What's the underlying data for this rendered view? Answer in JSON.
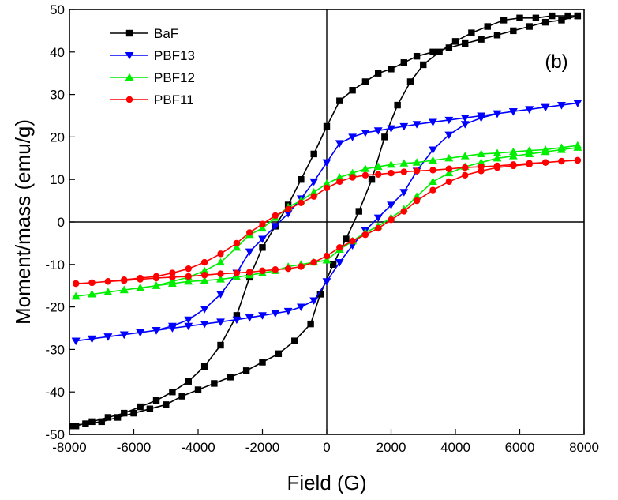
{
  "chart_data": {
    "type": "scatter",
    "title": "",
    "annotation": "(b)",
    "xlabel": "Field (G)",
    "ylabel": "Moment/mass (emu/g)",
    "xlim": [
      -8000,
      8000
    ],
    "ylim": [
      -50,
      50
    ],
    "xticks": [
      -8000,
      -6000,
      -4000,
      -2000,
      0,
      2000,
      4000,
      6000,
      8000
    ],
    "yticks": [
      -50,
      -40,
      -30,
      -20,
      -10,
      0,
      10,
      20,
      30,
      40,
      50
    ],
    "legend_position": "top-left",
    "zero_lines": true,
    "series": [
      {
        "name": "BaF",
        "color": "#000000",
        "marker": "square",
        "x": [
          7800,
          7300,
          6800,
          6300,
          5800,
          5300,
          4800,
          4300,
          3800,
          3300,
          2800,
          2400,
          2000,
          1600,
          1200,
          800,
          400,
          0,
          -400,
          -800,
          -1200,
          -1600,
          -2000,
          -2400,
          -2800,
          -3300,
          -3800,
          -4300,
          -4800,
          -5300,
          -5800,
          -6300,
          -6800,
          -7300,
          -7800,
          -8000,
          -7500,
          -7000,
          -6500,
          -6000,
          -5500,
          -5000,
          -4500,
          -4000,
          -3500,
          -3000,
          -2500,
          -2000,
          -1500,
          -1000,
          -500,
          -200,
          200,
          600,
          1000,
          1400,
          1800,
          2200,
          2600,
          3000,
          3500,
          4000,
          4500,
          5000,
          5500,
          6000,
          6500,
          7000,
          7500,
          7800
        ],
        "y": [
          48.5,
          47.5,
          47,
          46,
          45,
          44,
          43,
          42,
          41,
          40,
          39,
          37.5,
          36,
          35,
          33,
          31,
          28.5,
          22.5,
          16,
          10,
          4,
          -1,
          -6,
          -13,
          -22,
          -29,
          -34,
          -37.5,
          -40,
          -42,
          -43.5,
          -45,
          -46,
          -47,
          -48,
          -48,
          -47.5,
          -47,
          -46,
          -45,
          -44,
          -43,
          -41,
          -39.5,
          -38,
          -36.5,
          -35,
          -33,
          -31,
          -28,
          -24,
          -17,
          -10,
          -4,
          2.5,
          10,
          20,
          27.5,
          33,
          37,
          40,
          42.5,
          44.5,
          46,
          47.5,
          48,
          48,
          48.5,
          48.5,
          48.5
        ]
      },
      {
        "name": "PBF13",
        "color": "#0000ff",
        "marker": "triangle-down",
        "x": [
          7800,
          7300,
          6800,
          6300,
          5800,
          5300,
          4800,
          4300,
          3800,
          3300,
          2800,
          2400,
          2000,
          1600,
          1200,
          800,
          400,
          0,
          -400,
          -800,
          -1200,
          -1600,
          -2000,
          -2400,
          -2800,
          -3300,
          -3800,
          -4300,
          -4800,
          -5300,
          -5800,
          -6300,
          -6800,
          -7300,
          -7800,
          -7800,
          -7300,
          -6800,
          -6300,
          -5800,
          -5300,
          -4800,
          -4300,
          -3800,
          -3300,
          -2800,
          -2400,
          -2000,
          -1600,
          -1200,
          -800,
          -400,
          0,
          400,
          800,
          1200,
          1600,
          2000,
          2400,
          2800,
          3300,
          3800,
          4300,
          4800,
          5300,
          5800,
          6300,
          6800,
          7300,
          7800
        ],
        "y": [
          28,
          27.5,
          27,
          26.5,
          26,
          25.5,
          25,
          24.5,
          24,
          23.5,
          23,
          22.5,
          22,
          21.5,
          21,
          20,
          18.5,
          14,
          9.5,
          5.5,
          2,
          -1,
          -4,
          -7,
          -12,
          -17,
          -20.5,
          -23,
          -24.5,
          -25.5,
          -26,
          -26.5,
          -27,
          -27.5,
          -28,
          -28,
          -27.5,
          -27,
          -26.5,
          -26,
          -25.5,
          -25,
          -24.5,
          -24,
          -23.5,
          -23,
          -22.5,
          -22,
          -21.5,
          -21,
          -20,
          -18.5,
          -14,
          -9.5,
          -5.5,
          -2,
          1,
          4,
          7,
          12,
          17,
          20.5,
          23,
          24.5,
          25.5,
          26,
          26.5,
          27,
          27.5,
          28
        ]
      },
      {
        "name": "PBF12",
        "color": "#00ee00",
        "marker": "triangle-up",
        "x": [
          7800,
          7300,
          6800,
          6300,
          5800,
          5300,
          4800,
          4300,
          3800,
          3300,
          2800,
          2400,
          2000,
          1600,
          1200,
          800,
          400,
          0,
          -400,
          -800,
          -1200,
          -1600,
          -2000,
          -2400,
          -2800,
          -3300,
          -3800,
          -4300,
          -4800,
          -5300,
          -5800,
          -6300,
          -6800,
          -7300,
          -7800,
          -7800,
          -7300,
          -6800,
          -6300,
          -5800,
          -5300,
          -4800,
          -4300,
          -3800,
          -3300,
          -2800,
          -2400,
          -2000,
          -1600,
          -1200,
          -800,
          -400,
          0,
          400,
          800,
          1200,
          1600,
          2000,
          2400,
          2800,
          3300,
          3800,
          4300,
          4800,
          5300,
          5800,
          6300,
          6800,
          7300,
          7800
        ],
        "y": [
          18,
          17.5,
          17,
          16.8,
          16.5,
          16.2,
          16,
          15.5,
          15,
          14.5,
          14,
          13.8,
          13.5,
          13,
          12.5,
          11.5,
          10.5,
          9,
          7,
          5,
          3.5,
          1,
          -1.5,
          -3,
          -6,
          -9.5,
          -11.5,
          -13,
          -14,
          -15,
          -15.5,
          -16,
          -16.5,
          -17,
          -17.5,
          -17.5,
          -17,
          -16.5,
          -16,
          -15.5,
          -15,
          -14.5,
          -14,
          -13.8,
          -13.5,
          -13,
          -12.5,
          -12,
          -11.5,
          -10.5,
          -10,
          -9.5,
          -9,
          -6.5,
          -4.5,
          -2.5,
          -1,
          1,
          3,
          6,
          9.5,
          11.5,
          13,
          14,
          15,
          15.5,
          16,
          16.5,
          17,
          17.5
        ]
      },
      {
        "name": "PBF11",
        "color": "#ff0000",
        "marker": "circle",
        "x": [
          7800,
          7300,
          6800,
          6300,
          5800,
          5300,
          4800,
          4300,
          3800,
          3300,
          2800,
          2400,
          2000,
          1600,
          1200,
          800,
          400,
          0,
          -400,
          -800,
          -1200,
          -1600,
          -2000,
          -2400,
          -2800,
          -3300,
          -3800,
          -4300,
          -4800,
          -5300,
          -5800,
          -6300,
          -6800,
          -7300,
          -7800,
          -7800,
          -7300,
          -6800,
          -6300,
          -5800,
          -5300,
          -4800,
          -4300,
          -3800,
          -3300,
          -2800,
          -2400,
          -2000,
          -1600,
          -1200,
          -800,
          -400,
          0,
          400,
          800,
          1200,
          1600,
          2000,
          2400,
          2800,
          3300,
          3800,
          4300,
          4800,
          5300,
          5800,
          6300,
          6800,
          7300,
          7800
        ],
        "y": [
          14.5,
          14.3,
          14,
          13.8,
          13.5,
          13.2,
          13,
          12.8,
          12.5,
          12.2,
          12,
          11.8,
          11.5,
          11.2,
          11,
          10.5,
          9.5,
          8,
          6,
          4.5,
          3,
          1.5,
          -0.5,
          -2.5,
          -5,
          -7.5,
          -9.5,
          -11,
          -12,
          -12.8,
          -13.2,
          -13.6,
          -14,
          -14.3,
          -14.5,
          -14.5,
          -14.3,
          -14,
          -13.8,
          -13.5,
          -13.2,
          -13,
          -12.8,
          -12.5,
          -12.2,
          -12,
          -11.8,
          -11.5,
          -11.2,
          -11,
          -10.5,
          -9.5,
          -8,
          -6,
          -4.5,
          -3,
          -1.5,
          0.5,
          2.5,
          5,
          7.5,
          9.5,
          11,
          12,
          12.8,
          13.2,
          13.6,
          14,
          14.3,
          14.5
        ]
      }
    ]
  }
}
